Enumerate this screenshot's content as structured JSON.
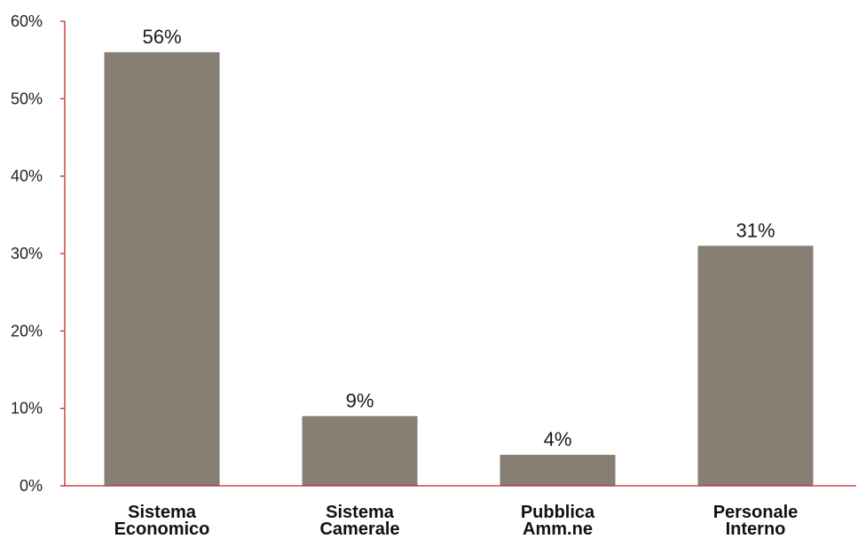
{
  "chart_data": {
    "type": "bar",
    "categories": [
      [
        "Sistema",
        "Economico"
      ],
      [
        "Sistema",
        "Camerale"
      ],
      [
        "Pubblica",
        "Amm.ne"
      ],
      [
        "Personale",
        "Interno"
      ]
    ],
    "values": [
      56,
      9,
      4,
      31
    ],
    "value_labels": [
      "56%",
      "9%",
      "4%",
      "31%"
    ],
    "y_ticks": [
      0,
      10,
      20,
      30,
      40,
      50,
      60
    ],
    "y_tick_labels": [
      "0%",
      "10%",
      "20%",
      "30%",
      "40%",
      "50%",
      "60%"
    ],
    "ylim": [
      0,
      60
    ],
    "title": "",
    "xlabel": "",
    "ylabel": "",
    "grid": false,
    "legend": "none",
    "bar_color": "#877f74",
    "axis_color": "#c0282d"
  }
}
